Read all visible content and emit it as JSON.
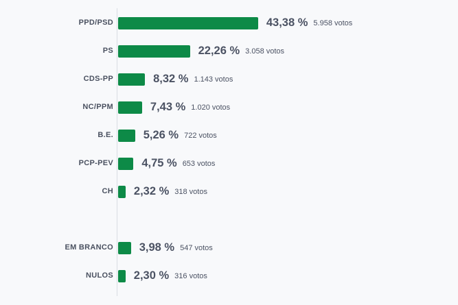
{
  "chart_data": {
    "type": "bar",
    "orientation": "horizontal",
    "bar_color": "#0d8a47",
    "percent_suffix": " %",
    "votes_suffix": " votos",
    "rows": [
      {
        "party": "PPD/PSD",
        "percent": 43.38,
        "percent_label": "43,38",
        "votes": "5.958"
      },
      {
        "party": "PS",
        "percent": 22.26,
        "percent_label": "22,26",
        "votes": "3.058"
      },
      {
        "party": "CDS-PP",
        "percent": 8.32,
        "percent_label": "8,32",
        "votes": "1.143"
      },
      {
        "party": "NC/PPM",
        "percent": 7.43,
        "percent_label": "7,43",
        "votes": "1.020"
      },
      {
        "party": "B.E.",
        "percent": 5.26,
        "percent_label": "5,26",
        "votes": "722"
      },
      {
        "party": "PCP-PEV",
        "percent": 4.75,
        "percent_label": "4,75",
        "votes": "653"
      },
      {
        "party": "CH",
        "percent": 2.32,
        "percent_label": "2,32",
        "votes": "318"
      },
      {
        "party": "EM BRANCO",
        "percent": 3.98,
        "percent_label": "3,98",
        "votes": "547"
      },
      {
        "party": "NULOS",
        "percent": 2.3,
        "percent_label": "2,30",
        "votes": "316"
      }
    ]
  }
}
